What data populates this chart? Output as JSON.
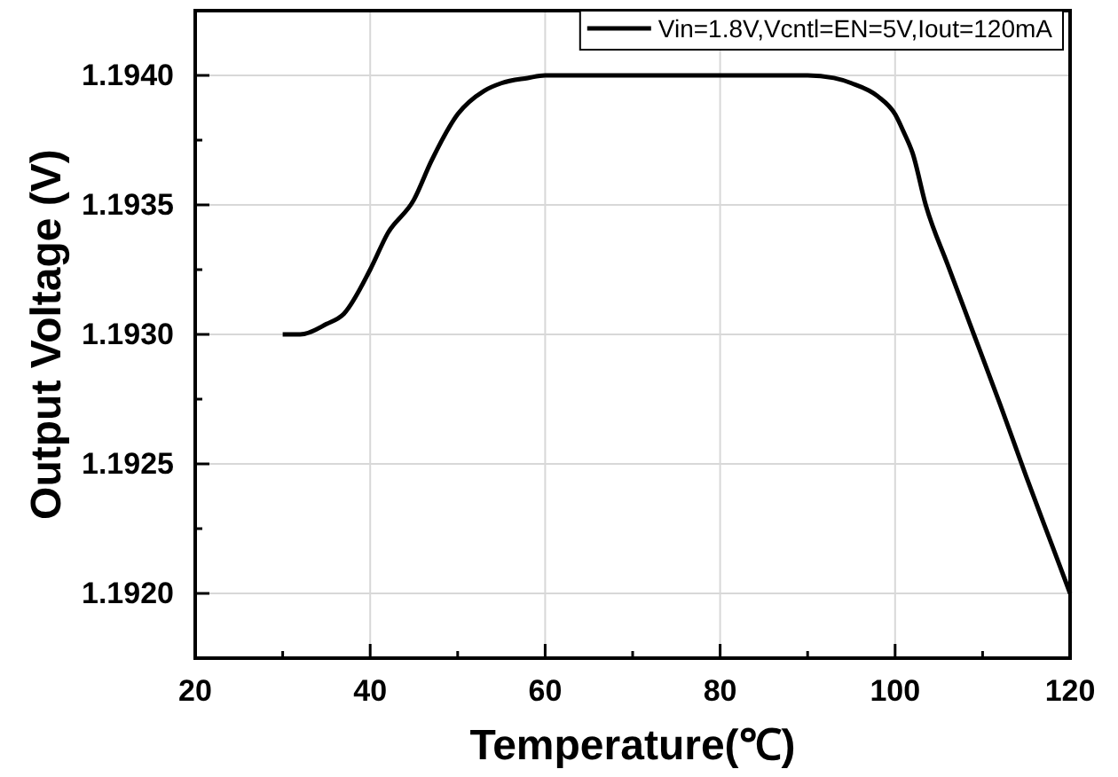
{
  "chart_data": {
    "type": "line",
    "xlabel": "Temperature(℃)",
    "ylabel": "Output Voltage (V)",
    "xlim": [
      20,
      120
    ],
    "xticks": [
      20,
      40,
      60,
      80,
      100,
      120
    ],
    "ylim": [
      1.19175,
      1.19425
    ],
    "yticks": [
      {
        "value": 1.192,
        "label": "1.1920"
      },
      {
        "value": 1.1925,
        "label": "1.1925"
      },
      {
        "value": 1.193,
        "label": "1.1930"
      },
      {
        "value": 1.1935,
        "label": "1.1935"
      },
      {
        "value": 1.194,
        "label": "1.1940"
      }
    ],
    "grid": true,
    "legend": "top right",
    "marker": "none",
    "line_style": "solid",
    "series": [
      {
        "name": "Vin=1.8V,Vcntl=EN=5V,Iout=120mA",
        "color": "#000000",
        "x": [
          30,
          32,
          35,
          37,
          40,
          42,
          45,
          47,
          50,
          53,
          55,
          58,
          60,
          70,
          80,
          90,
          93,
          95,
          98,
          100,
          101,
          102,
          103.5,
          106,
          108,
          109,
          112,
          115,
          118,
          120
        ],
        "values": [
          1.193,
          1.193,
          1.19304,
          1.19308,
          1.19325,
          1.19339,
          1.19352,
          1.19367,
          1.19385,
          1.19394,
          1.19397,
          1.19399,
          1.194,
          1.194,
          1.194,
          1.194,
          1.19399,
          1.19397,
          1.19392,
          1.19385,
          1.19378,
          1.1937,
          1.1935,
          1.19327,
          1.19309,
          1.193,
          1.19273,
          1.19245,
          1.19218,
          1.192
        ]
      }
    ]
  }
}
